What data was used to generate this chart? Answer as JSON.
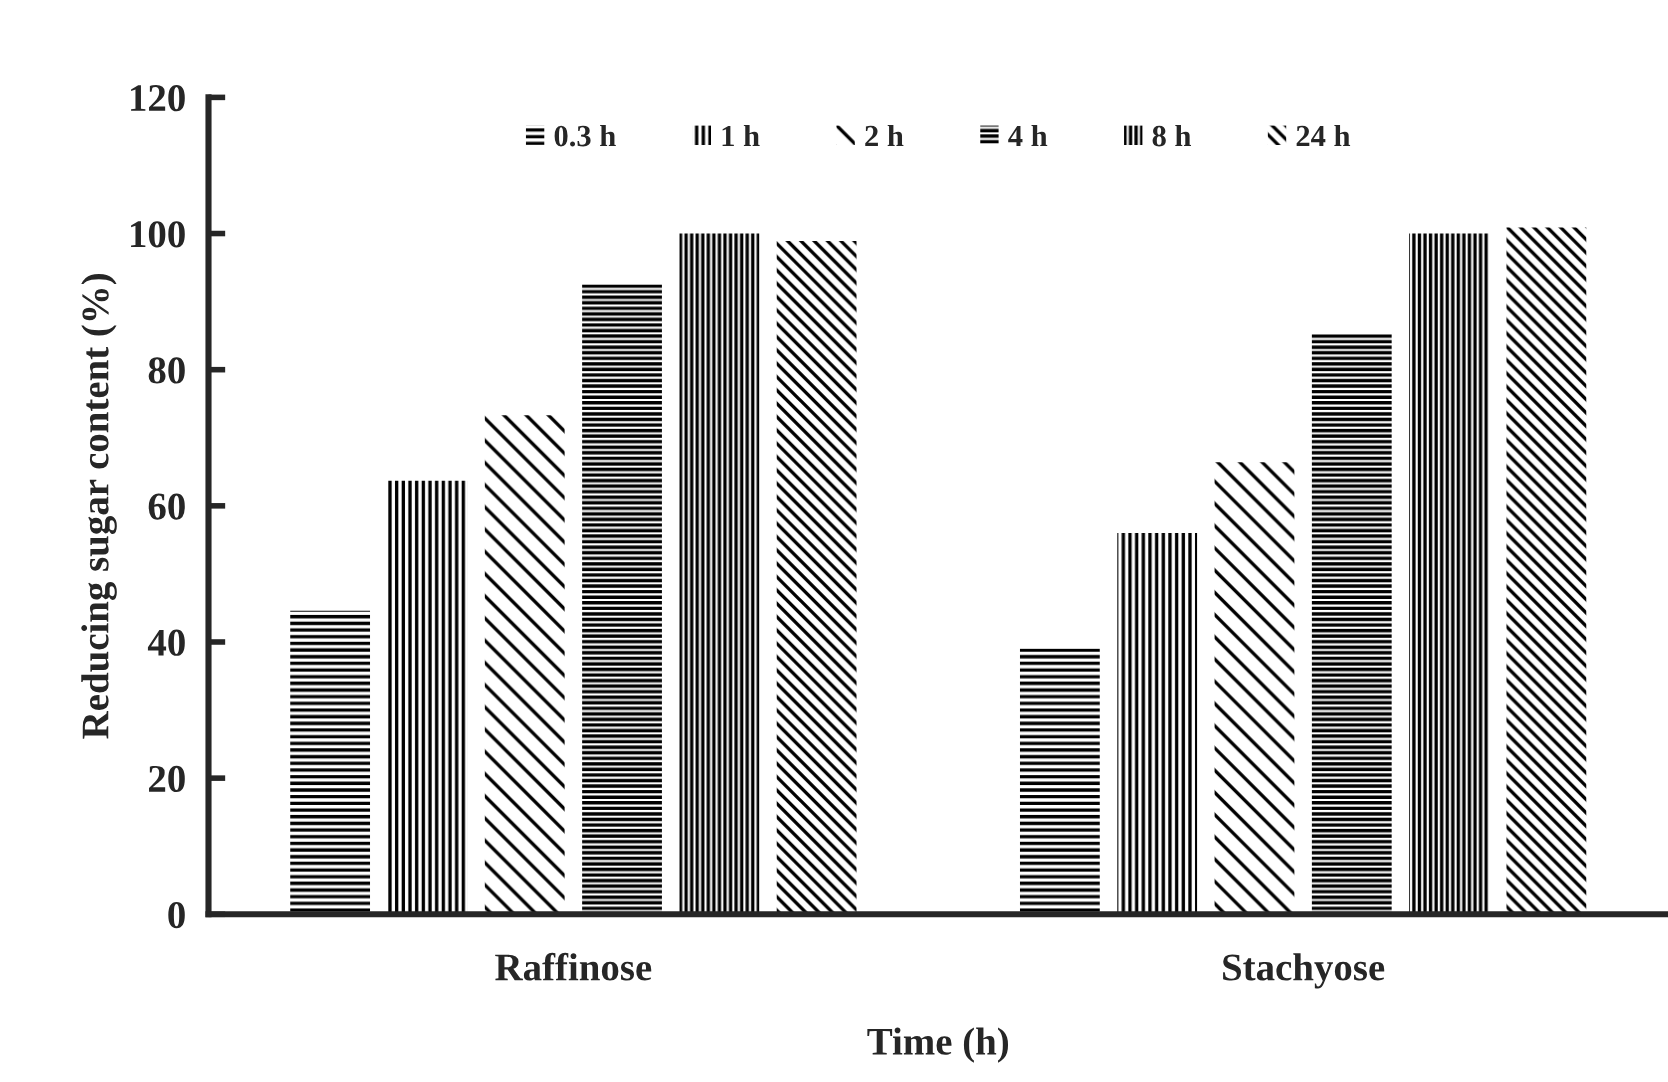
{
  "chart_data": {
    "type": "bar",
    "xlabel": "Time (h)",
    "ylabel": "Reducing sugar content (%)",
    "categories": [
      "Raffinose",
      "Stachyose"
    ],
    "series": [
      {
        "name": "0.3 h",
        "color": "#000000",
        "values": [
          44.6,
          39.0
        ]
      },
      {
        "name": "1 h",
        "color": "#000000",
        "values": [
          63.7,
          56.0
        ]
      },
      {
        "name": "2 h",
        "color": "#000000",
        "values": [
          73.3,
          66.4
        ]
      },
      {
        "name": "4 h",
        "color": "#000000",
        "values": [
          92.5,
          85.2
        ]
      },
      {
        "name": "8 h",
        "color": "#000000",
        "values": [
          100.0,
          100.0
        ]
      },
      {
        "name": "24 h",
        "color": "#000000",
        "values": [
          98.9,
          100.9
        ]
      }
    ],
    "ylim": [
      0,
      120
    ],
    "yticks": [
      0,
      20,
      40,
      60,
      80,
      100,
      120
    ],
    "grid": false,
    "legend": "top"
  }
}
